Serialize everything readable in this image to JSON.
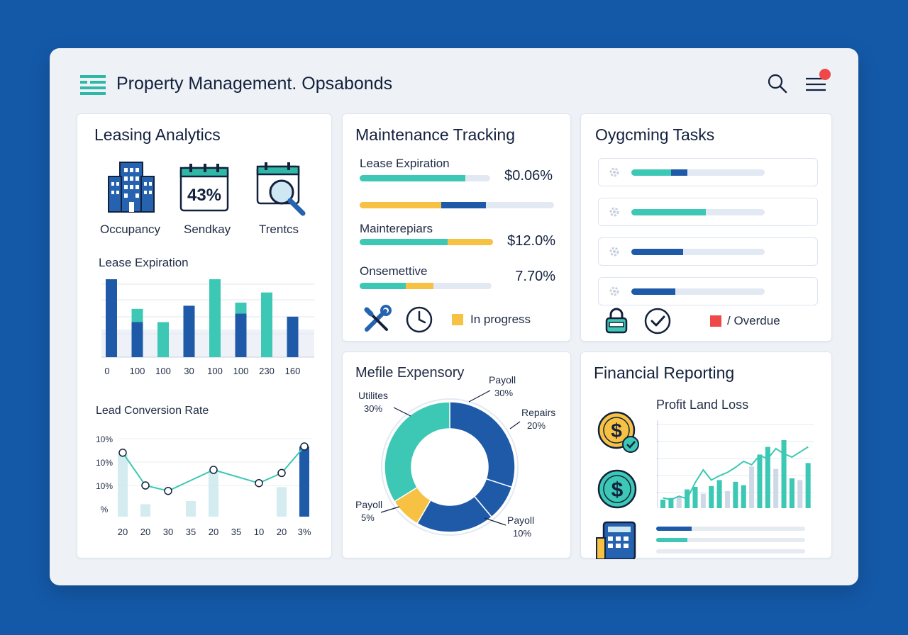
{
  "app": {
    "title": "Property Management. Opsabonds"
  },
  "icons": {
    "logo": "list-logo-icon",
    "search": "search-icon",
    "menu": "hamburger-menu-icon"
  },
  "colors": {
    "navy": "#1e5aa8",
    "teal": "#3cc8b4",
    "yellow": "#f7c243",
    "red": "#ef4848",
    "track": "#e3e9f2"
  },
  "leasing": {
    "title": "Leasing Analytics",
    "kpis": [
      {
        "icon": "building-icon",
        "label": "Occupancy"
      },
      {
        "icon": "calendar-icon",
        "label": "Sendkay",
        "value": "43%"
      },
      {
        "icon": "calendar-search-icon",
        "label": "Trentcs"
      }
    ],
    "bar_chart_title": "Lease Expiration",
    "line_chart_title": "Lead Conversion Rate"
  },
  "maintenance": {
    "title": "Maintenance Tracking",
    "rows": [
      {
        "label": "Lease Expiration",
        "value": "$0.06%",
        "progress": [
          {
            "color": "teal",
            "fraction": 0.81
          }
        ]
      },
      {
        "label": "",
        "value": "",
        "progress": [
          {
            "color": "yellow",
            "fraction": 0.42
          },
          {
            "color": "navy",
            "fraction": 0.23
          }
        ]
      },
      {
        "label": "Mainterepiars",
        "value": "$12.0%",
        "progress": [
          {
            "color": "teal",
            "fraction": 0.66
          },
          {
            "color": "yellow",
            "fraction": 0.34
          }
        ]
      },
      {
        "label": "Onsemettive",
        "value": "7.70%",
        "progress": [
          {
            "color": "teal",
            "fraction": 0.35
          },
          {
            "color": "yellow",
            "fraction": 0.21
          }
        ]
      }
    ],
    "legend": [
      {
        "icon": "wrench-screwdriver-icon"
      },
      {
        "icon": "clock-icon"
      },
      {
        "swatch": "#f7c243",
        "label": "In progress"
      }
    ]
  },
  "tasks": {
    "title": "Oygcming Tasks",
    "rows": [
      {
        "progress": [
          {
            "color": "teal",
            "fraction": 0.3
          },
          {
            "color": "navy",
            "fraction": 0.12
          }
        ]
      },
      {
        "progress": [
          {
            "color": "teal",
            "fraction": 0.56
          }
        ]
      },
      {
        "progress": [
          {
            "color": "navy",
            "fraction": 0.39
          }
        ]
      },
      {
        "progress": [
          {
            "color": "navy",
            "fraction": 0.33
          }
        ]
      }
    ],
    "legend": [
      {
        "icon": "lock-icon"
      },
      {
        "icon": "check-circle-icon"
      },
      {
        "swatch": "#ef4848",
        "label": "/ Overdue"
      }
    ]
  },
  "expenses": {
    "title": "Mefile Expensory",
    "slices": [
      {
        "label": "Payoll",
        "pct": "30%",
        "color": "#1e5aa8"
      },
      {
        "label": "Repairs",
        "pct": "20%",
        "color": "#1e5aa8"
      },
      {
        "label": "Payoll",
        "pct": "10%",
        "color": "#1e5aa8"
      },
      {
        "label": "Payoll",
        "pct": "5%",
        "color": "#f7c243"
      },
      {
        "label": "Utilites",
        "pct": "30%",
        "color": "#3cc8b4"
      }
    ]
  },
  "financial": {
    "title": "Financial Reporting",
    "chart_title": "Profit Land Loss",
    "icons": [
      "dollar-coin-check-icon",
      "dollar-coin-icon",
      "calculator-icon"
    ],
    "summary_bars": [
      {
        "color": "navy",
        "fraction": 0.24
      },
      {
        "color": "teal",
        "fraction": 0.21
      }
    ]
  },
  "chart_data": [
    {
      "type": "bar",
      "title": "Lease Expiration",
      "categories": [
        "0",
        "100",
        "100",
        "30",
        "100",
        "100",
        "230",
        "160"
      ],
      "series": [
        {
          "values": [
            100,
            45,
            0,
            0,
            0,
            56,
            0,
            52
          ]
        },
        {
          "values": [
            0,
            17,
            45,
            0,
            0,
            14,
            0,
            0
          ]
        },
        {
          "values": [
            0,
            0,
            0,
            66,
            0,
            0,
            0,
            0
          ]
        },
        {
          "values": [
            0,
            0,
            0,
            0,
            100,
            0,
            83,
            0
          ]
        }
      ],
      "ylim": [
        0,
        100
      ],
      "grid": true
    },
    {
      "type": "line",
      "title": "Lead Conversion Rate",
      "x": [
        "20",
        "20",
        "30",
        "35",
        "20",
        "35",
        "10",
        "20",
        "3%"
      ],
      "y_tick_labels": [
        "10%",
        "10%",
        "10%",
        "%"
      ],
      "series": [
        {
          "values": [
            82,
            40,
            33,
            0,
            60,
            0,
            43,
            56,
            90
          ]
        }
      ],
      "bars": [
        80,
        16,
        0,
        20,
        60,
        0,
        0,
        38,
        90
      ],
      "ylim": [
        0,
        100
      ]
    },
    {
      "type": "pie",
      "title": "Mefile Expensory",
      "labels": [
        "Payoll",
        "Repairs",
        "Payoll",
        "Payoll",
        "Utilites"
      ],
      "values": [
        30,
        20,
        10,
        5,
        30
      ]
    },
    {
      "type": "bar",
      "title": "Profit Land Loss",
      "bars": [
        10,
        12,
        14,
        22,
        25,
        17,
        26,
        33,
        20,
        31,
        27,
        49,
        63,
        72,
        46,
        80,
        35,
        33,
        53
      ],
      "line": [
        12,
        10,
        14,
        11,
        30,
        45,
        33,
        38,
        42,
        48,
        55,
        51,
        62,
        58,
        70,
        64,
        60,
        66,
        72
      ],
      "ylim": [
        0,
        100
      ]
    }
  ]
}
